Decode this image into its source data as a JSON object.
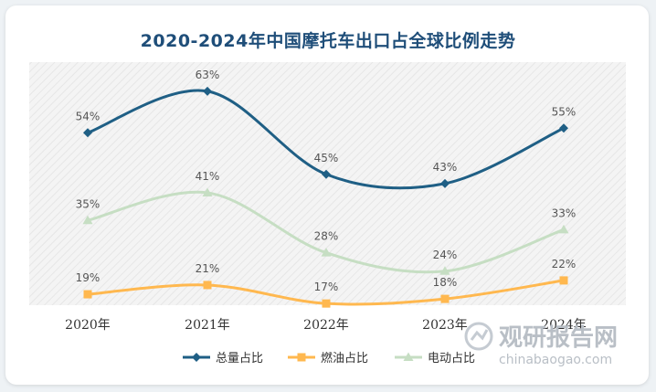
{
  "title": "2020-2024年中国摩托车出口占全球比例走势",
  "watermark": {
    "name": "观研报告网",
    "url": "chinabaogao.com"
  },
  "colors": {
    "series": [
      "#1f5f85",
      "#ffb84f",
      "#c6dec3"
    ],
    "title": "#1f4e79",
    "plot_bg": "#f3f3f3"
  },
  "chart_data": {
    "type": "line",
    "title": "2020-2024年中国摩托车出口占全球比例走势",
    "categories": [
      "2020年",
      "2021年",
      "2022年",
      "2023年",
      "2024年"
    ],
    "series": [
      {
        "name": "总量占比",
        "values": [
          54,
          63,
          45,
          43,
          55
        ],
        "labels": [
          "54%",
          "63%",
          "45%",
          "43%",
          "55%"
        ],
        "marker": "diamond"
      },
      {
        "name": "燃油占比",
        "values": [
          19,
          21,
          17,
          18,
          22
        ],
        "labels": [
          "19%",
          "21%",
          "17%",
          "18%",
          "22%"
        ],
        "marker": "square"
      },
      {
        "name": "电动占比",
        "values": [
          35,
          41,
          28,
          24,
          33
        ],
        "labels": [
          "35%",
          "41%",
          "28%",
          "24%",
          "33%"
        ],
        "marker": "triangle"
      }
    ],
    "ylim": [
      0,
      70
    ],
    "smooth": true,
    "grid": false,
    "legend": "bottom"
  }
}
